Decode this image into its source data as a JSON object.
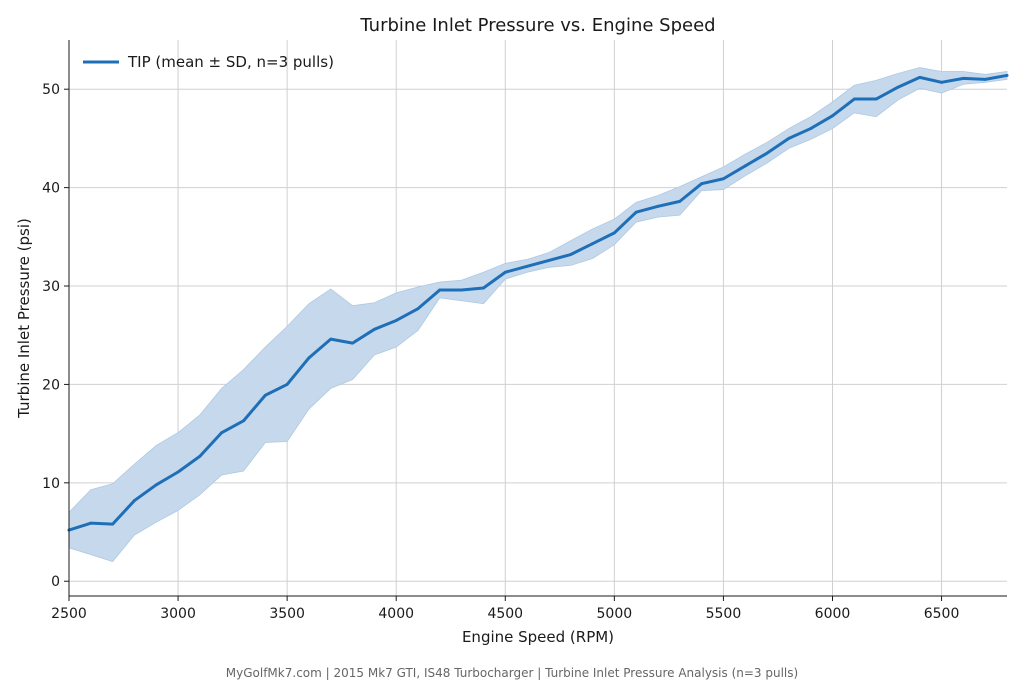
{
  "chart_data": {
    "type": "line",
    "title": "Turbine Inlet Pressure vs. Engine Speed",
    "xlabel": "Engine Speed (RPM)",
    "ylabel": "Turbine Inlet Pressure (psi)",
    "xlim": [
      2500,
      6800
    ],
    "ylim": [
      -1.5,
      55
    ],
    "xticks": [
      2500,
      3000,
      3500,
      4000,
      4500,
      5000,
      5500,
      6000,
      6500
    ],
    "yticks": [
      0,
      10,
      20,
      30,
      40,
      50
    ],
    "grid": true,
    "legend_position": "top-left",
    "series": [
      {
        "name": "TIP (mean ± SD, n=3 pulls)",
        "color": "#1f6fb8",
        "band_color": "#c6d9ec",
        "x": [
          2500,
          2600,
          2700,
          2800,
          2900,
          3000,
          3100,
          3200,
          3300,
          3400,
          3500,
          3600,
          3700,
          3800,
          3900,
          4000,
          4100,
          4200,
          4300,
          4400,
          4500,
          4600,
          4700,
          4800,
          4900,
          5000,
          5100,
          5200,
          5300,
          5400,
          5500,
          5600,
          5700,
          5800,
          5900,
          6000,
          6100,
          6200,
          6300,
          6400,
          6500,
          6600,
          6700,
          6800
        ],
        "mean": [
          5.2,
          5.9,
          5.8,
          8.2,
          9.8,
          11.1,
          12.7,
          15.1,
          16.3,
          18.9,
          20.0,
          22.7,
          24.6,
          24.2,
          25.6,
          26.5,
          27.7,
          29.6,
          29.6,
          29.8,
          31.4,
          32.0,
          32.6,
          33.2,
          34.3,
          35.4,
          37.5,
          38.1,
          38.6,
          40.4,
          40.9,
          42.2,
          43.5,
          45.0,
          46.0,
          47.3,
          49.0,
          49.0,
          50.2,
          51.2,
          50.7,
          51.1,
          51.0,
          51.4
        ],
        "lower": [
          3.4,
          2.7,
          2.0,
          4.7,
          6.0,
          7.2,
          8.8,
          10.8,
          11.2,
          14.1,
          14.2,
          17.5,
          19.6,
          20.5,
          23.0,
          23.8,
          25.5,
          28.8,
          28.5,
          28.2,
          30.7,
          31.4,
          31.9,
          32.1,
          32.8,
          34.2,
          36.5,
          37.0,
          37.2,
          39.7,
          39.8,
          41.2,
          42.5,
          44.0,
          44.9,
          46.0,
          47.6,
          47.2,
          48.9,
          50.1,
          49.6,
          50.5,
          50.7,
          51.0
        ],
        "upper": [
          7.0,
          9.3,
          9.9,
          11.9,
          13.8,
          15.1,
          16.9,
          19.6,
          21.5,
          23.8,
          25.9,
          28.2,
          29.7,
          28.0,
          28.3,
          29.3,
          29.9,
          30.4,
          30.6,
          31.4,
          32.3,
          32.7,
          33.4,
          34.6,
          35.8,
          36.8,
          38.5,
          39.2,
          40.1,
          41.1,
          42.1,
          43.4,
          44.6,
          46.0,
          47.2,
          48.7,
          50.4,
          50.9,
          51.6,
          52.2,
          51.8,
          51.8,
          51.5,
          51.8
        ]
      }
    ]
  },
  "footer": "MyGolfMk7.com | 2015 Mk7 GTI, IS48 Turbocharger | Turbine Inlet Pressure Analysis (n=3 pulls)"
}
